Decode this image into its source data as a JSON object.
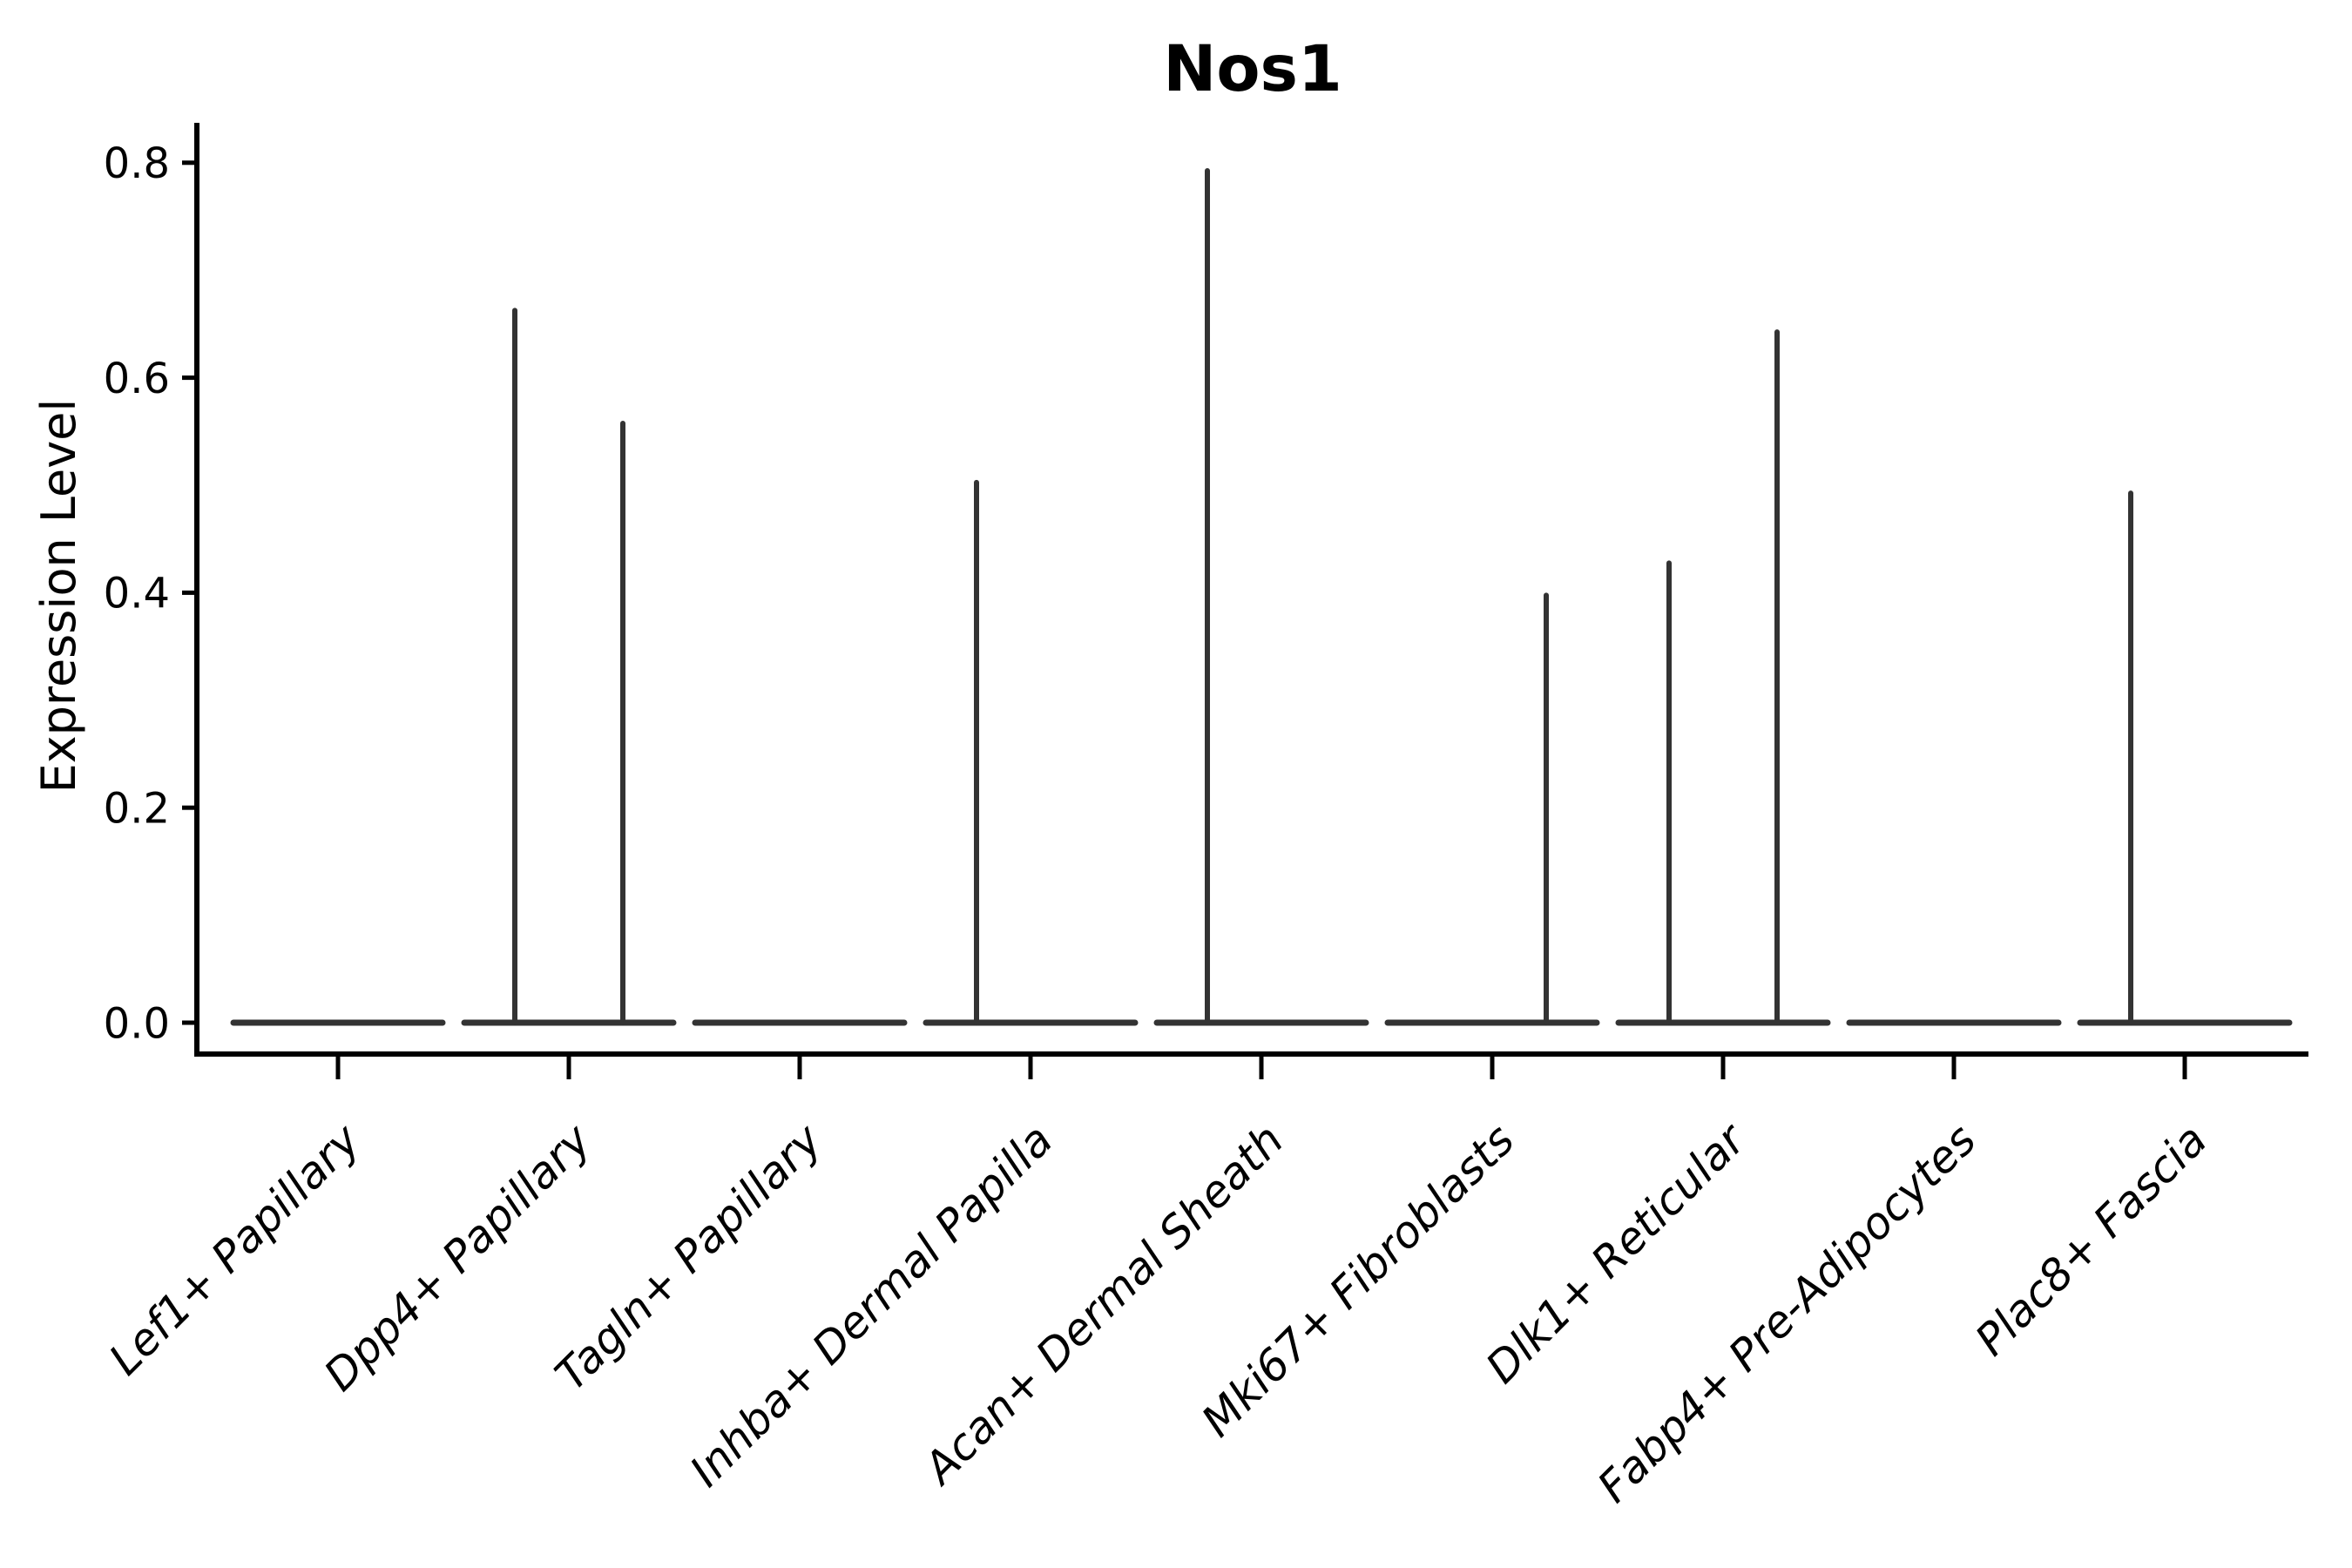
{
  "chart_data": {
    "type": "violin",
    "title": "Nos1",
    "xlabel": "",
    "ylabel": "Expression Level",
    "ylim": [
      0,
      0.8
    ],
    "yticks": [
      0.0,
      0.2,
      0.4,
      0.6,
      0.8
    ],
    "grid": false,
    "legend": null,
    "colors": {
      "violin_line": "#333333",
      "axis": "#000000",
      "background": "#ffffff"
    },
    "categories": [
      "Lef1+ Papillary",
      "Dpp4+ Papillary",
      "Tagln+ Papillary",
      "Inhba+ Dermal Papilla",
      "Acan+ Dermal Sheath",
      "Mki67+ Fibroblasts",
      "Dlk1+ Reticular",
      "Fabp4+ Pre-Adipocytes",
      "Plac8+ Fascia"
    ],
    "violins": [
      {
        "category": "Lef1+ Papillary",
        "bulk_value": 0.0,
        "spikes": []
      },
      {
        "category": "Dpp4+ Papillary",
        "bulk_value": 0.0,
        "spikes": [
          {
            "side": "left",
            "max_value": 0.665
          },
          {
            "side": "right",
            "max_value": 0.56
          }
        ]
      },
      {
        "category": "Tagln+ Papillary",
        "bulk_value": 0.0,
        "spikes": []
      },
      {
        "category": "Inhba+ Dermal Papilla",
        "bulk_value": 0.0,
        "spikes": [
          {
            "side": "left",
            "max_value": 0.505
          }
        ]
      },
      {
        "category": "Acan+ Dermal Sheath",
        "bulk_value": 0.0,
        "spikes": [
          {
            "side": "left",
            "max_value": 0.795
          }
        ]
      },
      {
        "category": "Mki67+ Fibroblasts",
        "bulk_value": 0.0,
        "spikes": [
          {
            "side": "right",
            "max_value": 0.4
          }
        ]
      },
      {
        "category": "Dlk1+ Reticular",
        "bulk_value": 0.0,
        "spikes": [
          {
            "side": "left",
            "max_value": 0.43
          },
          {
            "side": "right",
            "max_value": 0.645
          }
        ]
      },
      {
        "category": "Fabp4+ Pre-Adipocytes",
        "bulk_value": 0.0,
        "spikes": []
      },
      {
        "category": "Plac8+ Fascia",
        "bulk_value": 0.0,
        "spikes": [
          {
            "side": "left",
            "max_value": 0.495
          }
        ]
      }
    ]
  }
}
